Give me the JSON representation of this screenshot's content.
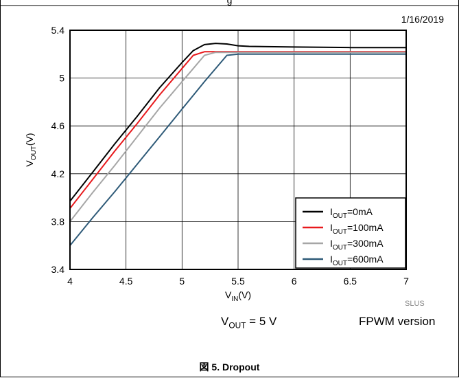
{
  "figure": {
    "date": "1/16/2019",
    "top_title_fragment": "g",
    "conditions": [
      "V_OUT = 5 V",
      "FPWM version"
    ],
    "source_tag": "SLUS",
    "caption": "図 5. Dropout"
  },
  "chart_data": {
    "type": "line",
    "title": "",
    "xlabel": "V_IN(V)",
    "ylabel": "V_OUT(V)",
    "xlim": [
      4,
      7
    ],
    "ylim": [
      3.4,
      5.4
    ],
    "x_ticks": [
      4,
      4.5,
      5,
      5.5,
      6,
      6.5,
      7
    ],
    "x_tick_labels": [
      "4",
      "4.5",
      "5",
      "5.5",
      "6",
      "6.5",
      "7"
    ],
    "y_ticks": [
      3.4,
      3.8,
      4.2,
      4.6,
      5,
      5.4
    ],
    "y_tick_labels": [
      "3.4",
      "3.8",
      "4.2",
      "4.6",
      "5",
      "5.4"
    ],
    "grid": true,
    "legend_position": "bottom-right",
    "series": [
      {
        "name": "I_OUT=0mA",
        "color": "#000000",
        "x": [
          4.0,
          4.2,
          4.4,
          4.6,
          4.8,
          5.0,
          5.1,
          5.2,
          5.3,
          5.4,
          5.5,
          5.6,
          6.0,
          6.5,
          7.0
        ],
        "y": [
          3.97,
          4.21,
          4.45,
          4.68,
          4.92,
          5.13,
          5.23,
          5.28,
          5.29,
          5.285,
          5.27,
          5.265,
          5.26,
          5.255,
          5.255
        ]
      },
      {
        "name": "I_OUT=100mA",
        "color": "#e8191c",
        "x": [
          4.0,
          4.2,
          4.4,
          4.6,
          4.8,
          5.0,
          5.1,
          5.2,
          5.3,
          5.5,
          6.0,
          6.5,
          7.0
        ],
        "y": [
          3.91,
          4.15,
          4.39,
          4.62,
          4.86,
          5.08,
          5.19,
          5.22,
          5.22,
          5.22,
          5.22,
          5.22,
          5.22
        ]
      },
      {
        "name": "I_OUT=300mA",
        "color": "#a6a6a6",
        "x": [
          4.0,
          4.2,
          4.4,
          4.6,
          4.8,
          5.0,
          5.1,
          5.2,
          5.3,
          5.5,
          6.0,
          6.5,
          7.0
        ],
        "y": [
          3.8,
          4.04,
          4.27,
          4.51,
          4.75,
          4.97,
          5.08,
          5.19,
          5.215,
          5.215,
          5.215,
          5.215,
          5.215
        ]
      },
      {
        "name": "I_OUT=600mA",
        "color": "#2e5a78",
        "x": [
          4.0,
          4.2,
          4.4,
          4.6,
          4.8,
          5.0,
          5.2,
          5.4,
          5.5,
          6.0,
          6.5,
          7.0
        ],
        "y": [
          3.6,
          3.83,
          4.05,
          4.28,
          4.51,
          4.74,
          4.97,
          5.19,
          5.2,
          5.2,
          5.2,
          5.2
        ]
      }
    ]
  }
}
